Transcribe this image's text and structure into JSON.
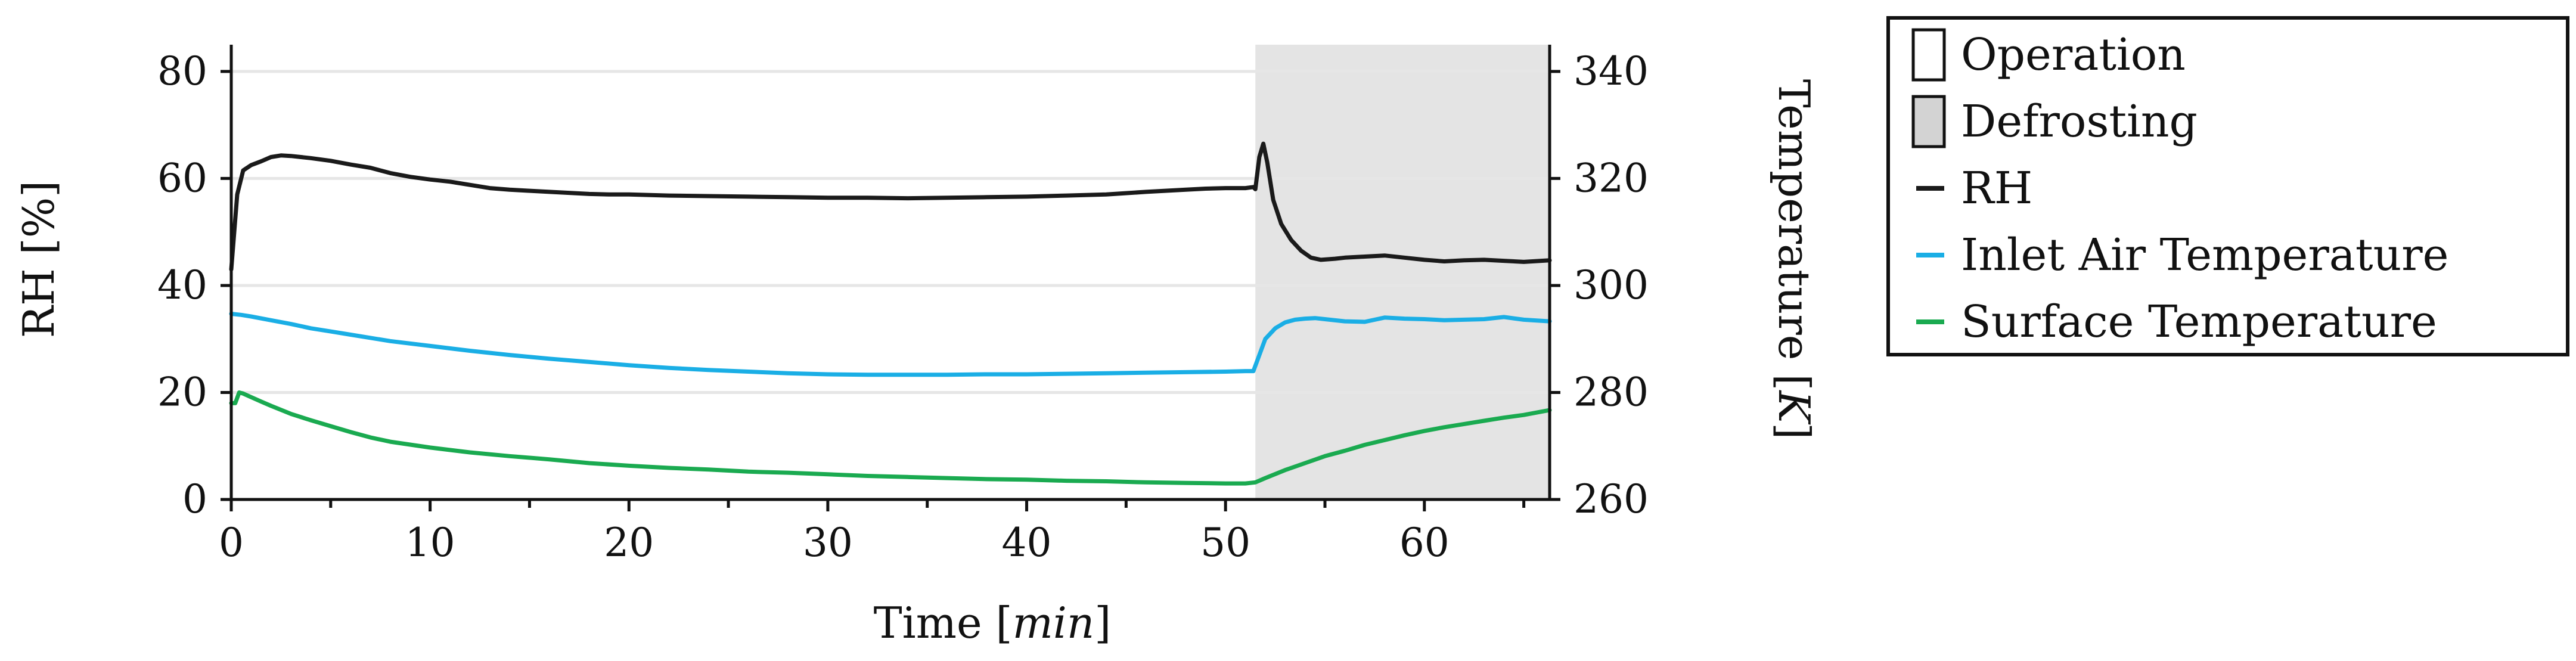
{
  "chart_data": {
    "type": "line",
    "title": "",
    "xlabel": "Time [",
    "xlabel_unit": "min",
    "xlabel_suffix": "]",
    "ylabel_left": "RH [%]",
    "ylabel_right": "Temperature [",
    "ylabel_right_unit": "K",
    "ylabel_right_suffix": "]",
    "xlim": [
      0,
      66.3
    ],
    "ylim_left": [
      0,
      85
    ],
    "ylim_right": [
      260,
      345
    ],
    "xticks": [
      0,
      10,
      20,
      30,
      40,
      50,
      60
    ],
    "xticks_minor": [
      5,
      15,
      25,
      35,
      45,
      55,
      65
    ],
    "yticks_left": [
      0,
      20,
      40,
      60,
      80
    ],
    "yticks_right": [
      260,
      280,
      300,
      320,
      340
    ],
    "grid": true,
    "legend_position": "outside-right",
    "legend": [
      {
        "label": "Operation",
        "kind": "patch",
        "color": "#ffffff"
      },
      {
        "label": "Defrosting",
        "kind": "patch",
        "color": "#d3d3d3"
      },
      {
        "label": "RH",
        "kind": "line",
        "color": "#1a1a1a"
      },
      {
        "label": "Inlet Air Temperature",
        "kind": "line",
        "color": "#1aaee5"
      },
      {
        "label": "Surface Temperature",
        "kind": "line",
        "color": "#1aaa50"
      }
    ],
    "regions": [
      {
        "name": "Defrosting",
        "x_start": 51.5,
        "x_end": 66.3,
        "color": "#e4e4e4"
      }
    ],
    "series": [
      {
        "name": "RH",
        "axis": "left",
        "color": "#1a1a1a",
        "x": [
          0,
          0.3,
          0.6,
          1,
          1.5,
          2,
          2.5,
          3,
          4,
          5,
          6,
          7,
          8,
          9,
          10,
          11,
          12,
          13,
          14,
          15,
          16,
          17,
          18,
          19,
          20,
          22,
          24,
          26,
          28,
          30,
          32,
          34,
          36,
          38,
          40,
          42,
          44,
          46,
          48,
          49,
          50,
          51,
          51.4,
          51.5,
          51.7,
          51.9,
          52.1,
          52.4,
          52.8,
          53.3,
          53.8,
          54.3,
          54.8,
          55.5,
          56,
          57,
          58,
          59,
          60,
          61,
          62,
          63,
          64,
          65,
          66.3
        ],
        "y": [
          43,
          57,
          61.5,
          62.5,
          63.2,
          64,
          64.3,
          64.2,
          63.8,
          63.3,
          62.6,
          62,
          61,
          60.3,
          59.8,
          59.4,
          58.8,
          58.2,
          57.9,
          57.7,
          57.5,
          57.3,
          57.1,
          57,
          57,
          56.8,
          56.7,
          56.6,
          56.5,
          56.4,
          56.4,
          56.3,
          56.4,
          56.5,
          56.6,
          56.8,
          57,
          57.5,
          57.9,
          58.1,
          58.2,
          58.2,
          58.4,
          58,
          64,
          66.5,
          63,
          56,
          51.5,
          48.5,
          46.5,
          45.2,
          44.8,
          45,
          45.2,
          45.4,
          45.6,
          45.2,
          44.8,
          44.5,
          44.7,
          44.8,
          44.6,
          44.4,
          44.7
        ]
      },
      {
        "name": "Inlet Air Temperature",
        "axis": "right",
        "color": "#1aaee5",
        "x": [
          0,
          0.5,
          1,
          2,
          3,
          4,
          5,
          6,
          8,
          10,
          12,
          14,
          16,
          18,
          20,
          22,
          24,
          26,
          28,
          30,
          32,
          34,
          36,
          38,
          40,
          42,
          44,
          46,
          48,
          50,
          51,
          51.4,
          51.6,
          52,
          52.5,
          53,
          53.5,
          54,
          54.5,
          55,
          56,
          57,
          58,
          59,
          60,
          61,
          62,
          63,
          64,
          65,
          66.3
        ],
        "y": [
          294.7,
          294.5,
          294.2,
          293.5,
          292.8,
          292,
          291.4,
          290.8,
          289.6,
          288.7,
          287.8,
          287,
          286.3,
          285.7,
          285.1,
          284.6,
          284.2,
          283.9,
          283.6,
          283.4,
          283.3,
          283.3,
          283.3,
          283.4,
          283.4,
          283.5,
          283.6,
          283.7,
          283.8,
          283.9,
          284,
          284,
          286,
          290,
          292,
          293.1,
          293.6,
          293.8,
          293.9,
          293.7,
          293.3,
          293.2,
          294,
          293.8,
          293.7,
          293.5,
          293.6,
          293.7,
          294.1,
          293.6,
          293.3
        ]
      },
      {
        "name": "Surface Temperature",
        "axis": "right",
        "color": "#1aaa50",
        "x": [
          0,
          0.2,
          0.4,
          0.6,
          0.9,
          1.5,
          2,
          3,
          4,
          5,
          6,
          7,
          8,
          10,
          12,
          14,
          16,
          18,
          20,
          22,
          24,
          26,
          28,
          30,
          32,
          34,
          36,
          38,
          40,
          42,
          44,
          46,
          48,
          50,
          51,
          51.5,
          52,
          53,
          54,
          55,
          56,
          57,
          58,
          59,
          60,
          61,
          62,
          63,
          64,
          65,
          66.3
        ],
        "y": [
          278,
          278,
          280,
          279.8,
          279.3,
          278.3,
          277.5,
          276,
          274.8,
          273.7,
          272.6,
          271.6,
          270.8,
          269.7,
          268.8,
          268.1,
          267.5,
          266.8,
          266.3,
          265.9,
          265.6,
          265.2,
          265,
          264.7,
          264.4,
          264.2,
          264,
          263.8,
          263.7,
          263.5,
          263.4,
          263.2,
          263.1,
          263,
          263,
          263.2,
          264,
          265.5,
          266.8,
          268.1,
          269.1,
          270.2,
          271.1,
          272,
          272.8,
          273.5,
          274.1,
          274.7,
          275.3,
          275.8,
          276.7
        ]
      }
    ]
  }
}
